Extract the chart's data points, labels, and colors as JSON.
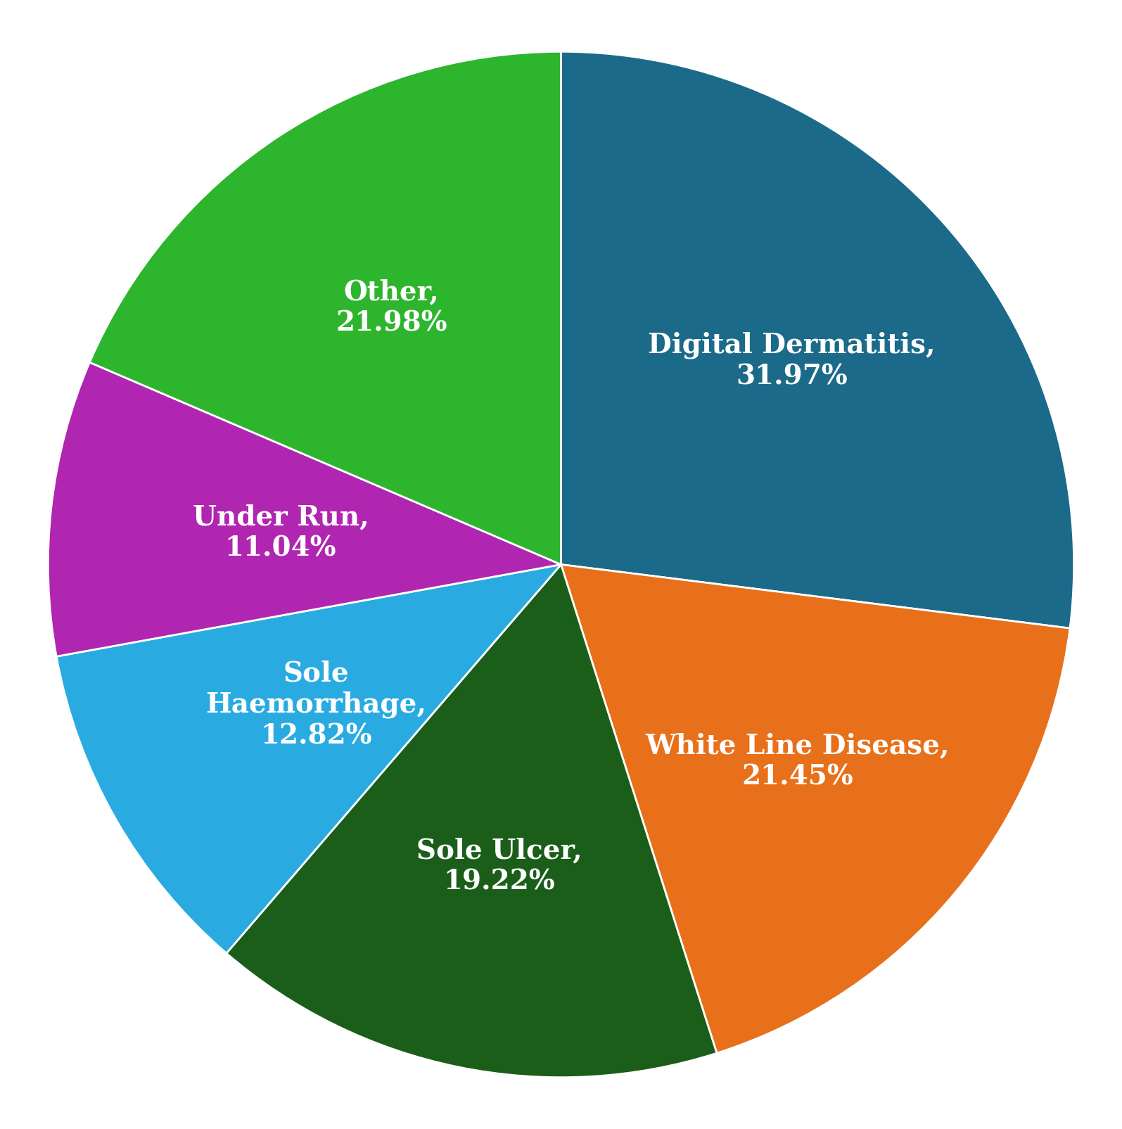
{
  "labels": [
    "Digital Dermatitis,\n31.97%",
    "White Line Disease,\n21.45%",
    "Sole Ulcer,\n19.22%",
    "Sole\nHaemorrhage,\n12.82%",
    "Under Run,\n11.04%",
    "Other,\n21.98%"
  ],
  "values": [
    31.97,
    21.45,
    19.22,
    12.82,
    11.04,
    21.98
  ],
  "colors": [
    "#1b6a8a",
    "#e8701a",
    "#1a5e1a",
    "#29abe2",
    "#b026b0",
    "#2db52d"
  ],
  "label_radii": [
    0.6,
    0.6,
    0.6,
    0.55,
    0.55,
    0.6
  ],
  "startangle": 90,
  "text_color": "white",
  "font_size": 28,
  "font_weight": "bold",
  "background_color": "white",
  "edgecolor": "white",
  "edgewidth": 2.0
}
